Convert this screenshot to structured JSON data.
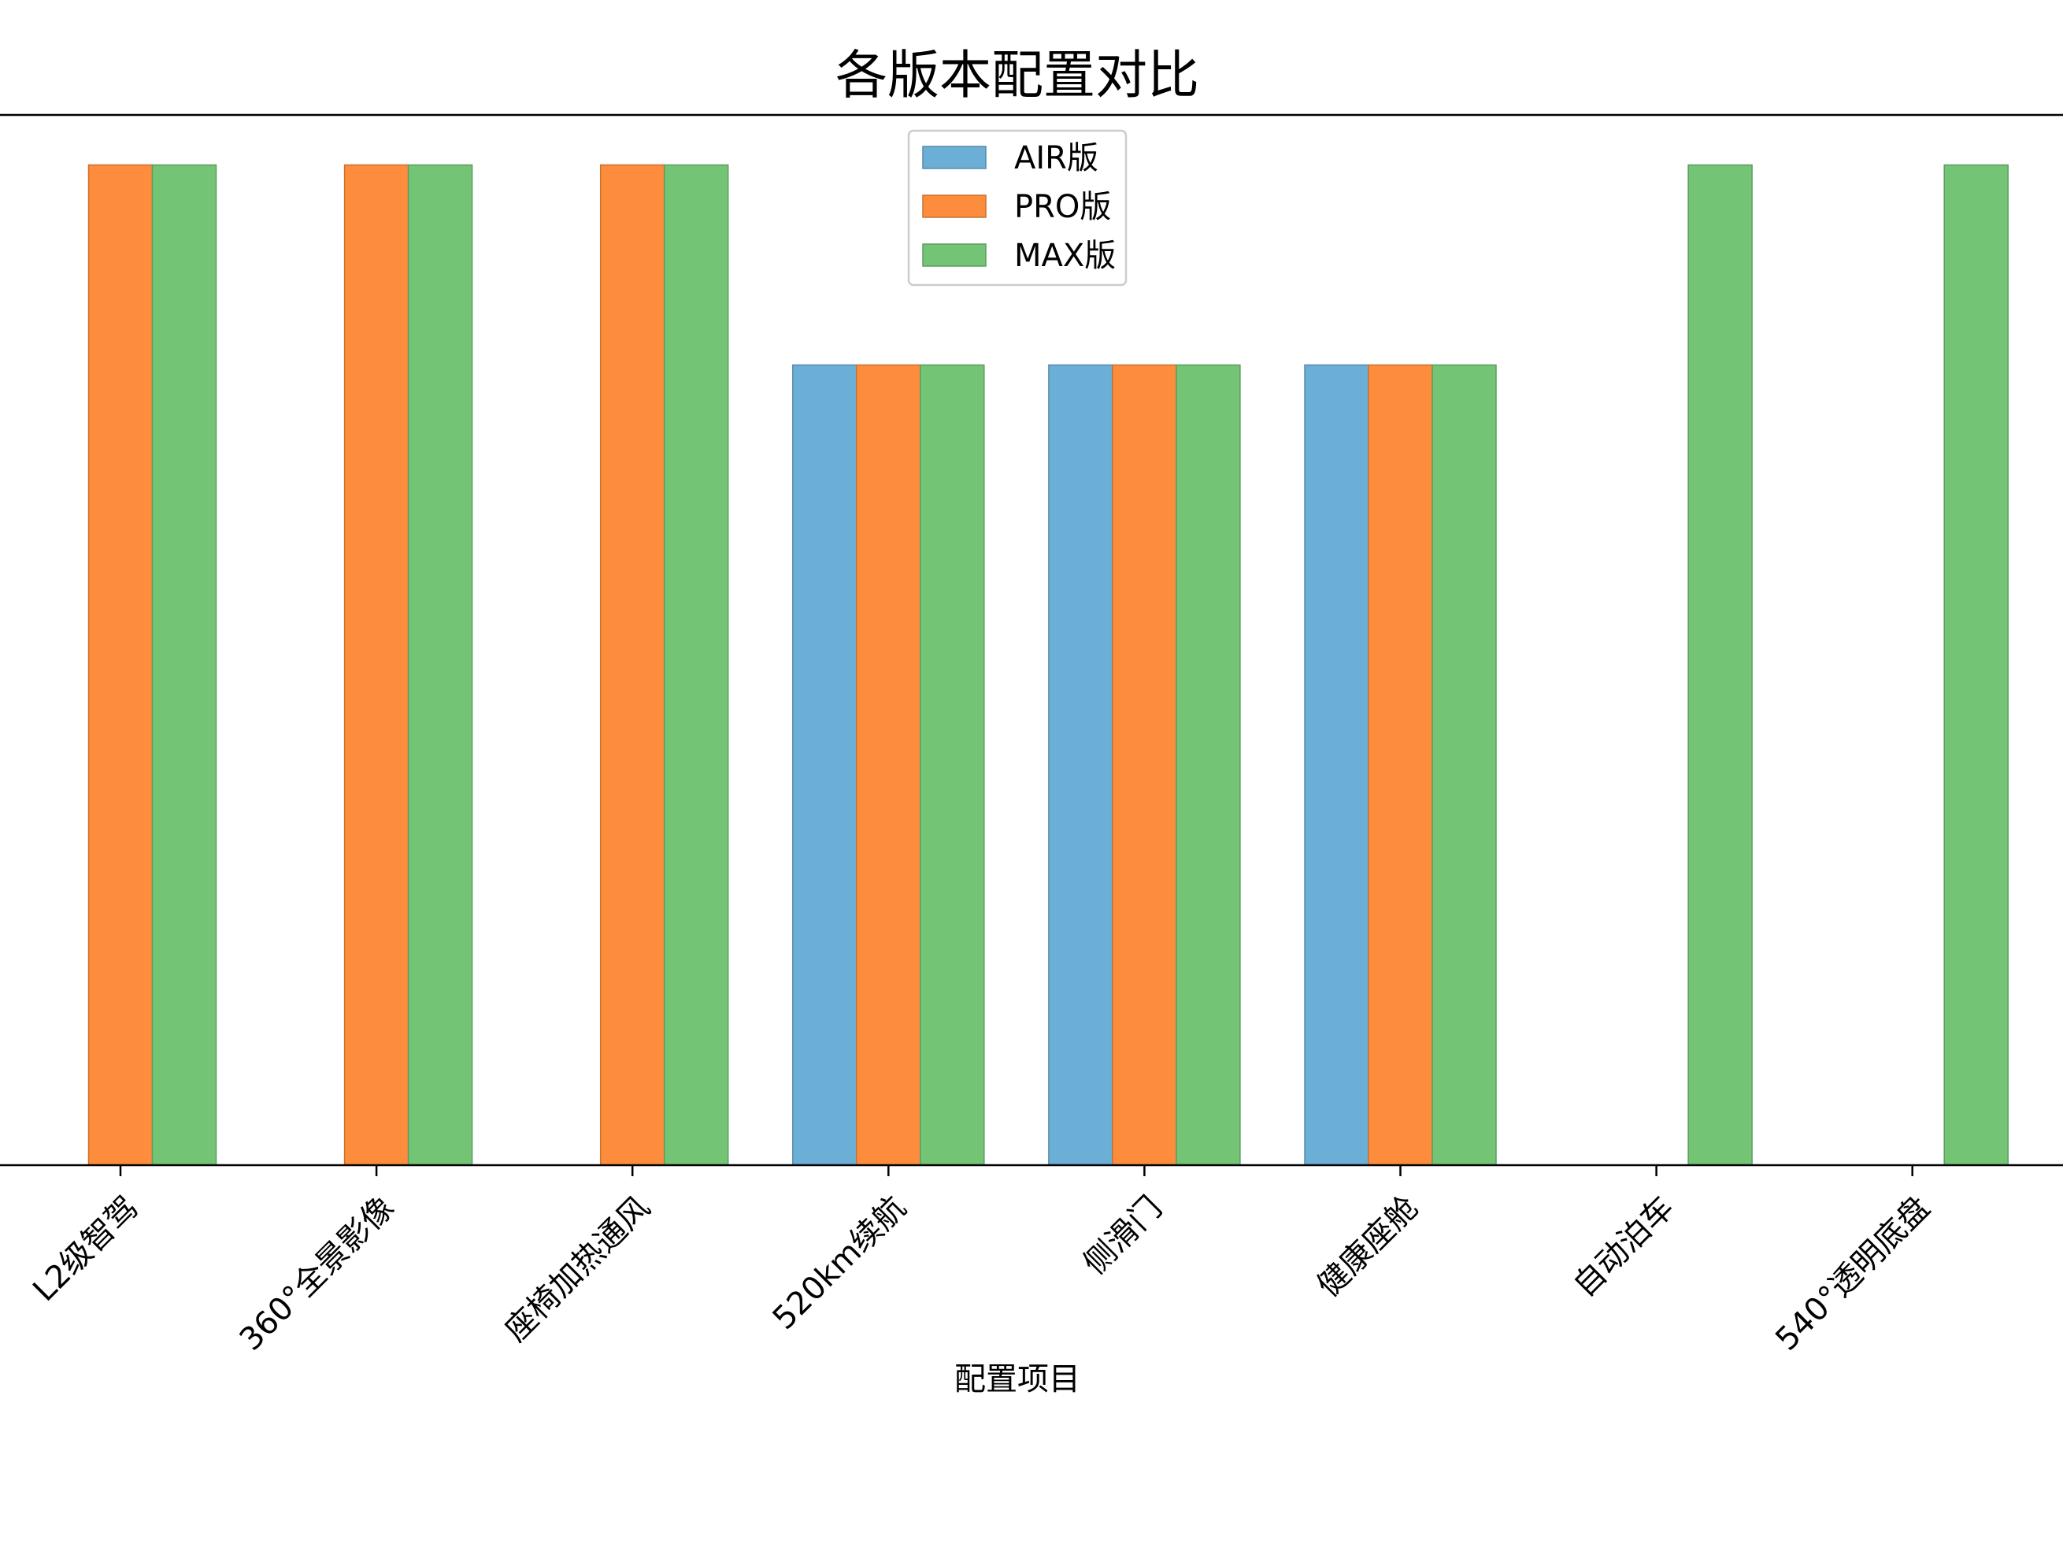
{
  "chart_data": {
    "type": "bar",
    "title": "各版本配置对比",
    "xlabel": "配置项目",
    "ylabel": "",
    "categories": [
      "L2级智驾",
      "360°全景影像",
      "座椅加热通风",
      "520km续航",
      "侧滑门",
      "健康座舱",
      "自动泊车",
      "540°透明底盘"
    ],
    "series": [
      {
        "name": "AIR版",
        "color": "#6baed6",
        "values": [
          0,
          0,
          0,
          0.8,
          0.8,
          0.8,
          0,
          0
        ]
      },
      {
        "name": "PRO版",
        "color": "#fd8d3c",
        "values": [
          1,
          1,
          1,
          0.8,
          0.8,
          0.8,
          0,
          0
        ]
      },
      {
        "name": "MAX版",
        "color": "#74c476",
        "values": [
          1,
          1,
          1,
          0.8,
          0.8,
          0.8,
          1,
          1
        ]
      }
    ],
    "ylim": [
      0,
      1.05
    ],
    "grid": false,
    "legend_position": "upper center"
  }
}
